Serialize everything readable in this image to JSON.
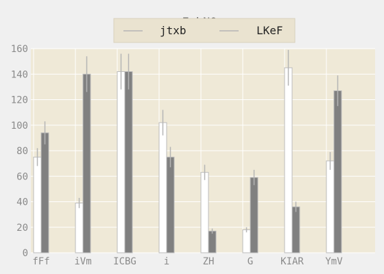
{
  "chart_data": {
    "type": "bar",
    "title": "FxbNOy",
    "xlabel": "",
    "ylabel": "",
    "categories": [
      "fFf",
      "iVm",
      "ICBG",
      "i",
      "ZH",
      "G",
      "KIAR",
      "YmV"
    ],
    "series": [
      {
        "name": "jtxb",
        "values": [
          75,
          39,
          142,
          102,
          63,
          18,
          145,
          72
        ],
        "errors": [
          7,
          4,
          14,
          10,
          6,
          2,
          14,
          7
        ],
        "color": "#ffffff"
      },
      {
        "name": "LKeF",
        "values": [
          94,
          140,
          142,
          75,
          17,
          59,
          36,
          127
        ],
        "errors": [
          9,
          14,
          14,
          8,
          2,
          6,
          4,
          12
        ],
        "color": "#808080"
      }
    ],
    "ylim": [
      0,
      160
    ],
    "yticks": [
      0,
      20,
      40,
      60,
      80,
      100,
      120,
      140,
      160
    ],
    "grid": true,
    "legend_position": "top-center",
    "style": {
      "plot_background": "#efe9d7",
      "grid_color": "#ffffff",
      "edge_color": "#bbbbbb",
      "error_color": "#b5b5b5"
    }
  }
}
